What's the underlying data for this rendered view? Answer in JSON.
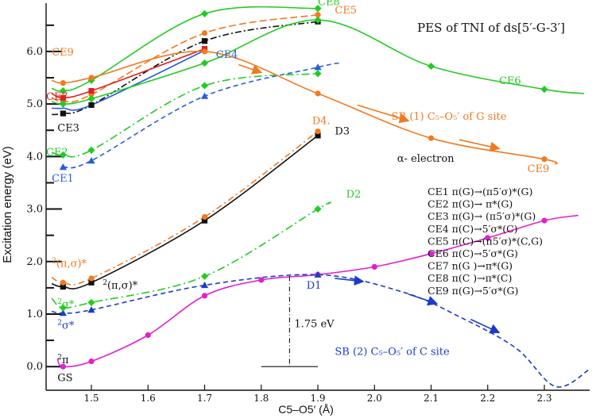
{
  "chart_data": {
    "type": "line",
    "title": "PES of TNI of ds[5′-G-3′]",
    "xlabel": "C5–O5′ (Å)",
    "ylabel": "Excitation energy (eV)",
    "xlim": [
      1.42,
      2.38
    ],
    "ylim": [
      -0.45,
      6.92
    ],
    "xticks": [
      1.5,
      1.6,
      1.7,
      1.8,
      1.9,
      2.0,
      2.1,
      2.2,
      2.3
    ],
    "yticks": [
      0.0,
      1.0,
      2.0,
      3.0,
      4.0,
      5.0,
      6.0
    ],
    "tick_labels_x": [
      "1.5",
      "1.6",
      "1.7",
      "1.8",
      "1.9",
      "2.0",
      "2.1",
      "2.2",
      "2.3"
    ],
    "tick_labels_y": [
      "0.0",
      "1.0",
      "2.0",
      "3.0",
      "4.0",
      "5.0",
      "6.0"
    ],
    "series": [
      {
        "name": "GS",
        "color": "#e020d0",
        "dash": "solid",
        "marker": "circle",
        "x": [
          1.45,
          1.5,
          1.6,
          1.7,
          1.8,
          1.9,
          2.0,
          2.1,
          2.2,
          2.3
        ],
        "y": [
          0.0,
          0.1,
          0.6,
          1.35,
          1.65,
          1.75,
          1.9,
          2.15,
          2.45,
          2.78
        ],
        "smooth_start": [
          1.44,
          0.15
        ],
        "smooth_end": [
          2.36,
          2.88
        ]
      },
      {
        "name": "D1 (σ*)",
        "color": "#1c3cc8",
        "dash": "6,4",
        "marker": "triangle",
        "x": [
          1.45,
          1.5,
          1.7,
          1.9,
          2.05,
          2.15,
          2.25,
          2.32
        ],
        "y": [
          1.02,
          1.08,
          1.55,
          1.75,
          1.42,
          0.95,
          0.35,
          -0.38
        ],
        "markers_at": 4,
        "smooth_start": [
          1.43,
          1.05
        ],
        "smooth_end": [
          2.38,
          -0.05
        ]
      },
      {
        "name": "D2 (σ*)",
        "color": "#22cc22",
        "dash": "10,4,2,4",
        "marker": "diamond",
        "x": [
          1.45,
          1.5,
          1.7,
          1.9,
          1.92
        ],
        "y": [
          1.12,
          1.22,
          1.72,
          3.0,
          3.1
        ],
        "markers_at": 4,
        "smooth_start": [
          1.43,
          1.3
        ]
      },
      {
        "name": "(π,σ)* black",
        "color": "#111111",
        "dash": "solid",
        "marker": "square",
        "x": [
          1.45,
          1.5,
          1.7,
          1.9
        ],
        "y": [
          1.52,
          1.6,
          2.78,
          4.4
        ],
        "smooth_start": [
          1.43,
          1.58
        ]
      },
      {
        "name": "(π,σ)* orange",
        "color": "#f07a20",
        "dash": "8,4,2,4",
        "marker": "circle",
        "x": [
          1.45,
          1.5,
          1.7,
          1.9
        ],
        "y": [
          1.6,
          1.68,
          2.85,
          4.48
        ],
        "smooth_start": [
          1.43,
          1.7
        ]
      },
      {
        "name": "CE1",
        "color": "#2a5ed8",
        "dash": "6,4",
        "marker": "triangle",
        "x": [
          1.45,
          1.5,
          1.7,
          1.9,
          1.94
        ],
        "y": [
          3.8,
          3.92,
          5.15,
          5.7,
          5.78
        ],
        "markers_at": 4
      },
      {
        "name": "CE2",
        "color": "#22cc22",
        "dash": "10,4,2,4",
        "marker": "diamond",
        "x": [
          1.45,
          1.5,
          1.7,
          1.9
        ],
        "y": [
          4.03,
          4.12,
          5.35,
          5.58
        ],
        "smooth_start": [
          1.43,
          4.08
        ]
      },
      {
        "name": "CE3",
        "color": "#111111",
        "dash": "8,3,2,3",
        "marker": "square",
        "x": [
          1.45,
          1.5,
          1.7,
          1.9
        ],
        "y": [
          4.82,
          4.98,
          6.2,
          6.57
        ],
        "smooth_start": [
          1.43,
          4.8
        ]
      },
      {
        "name": "CE4",
        "color": "#2a5ed8",
        "dash": "solid",
        "marker": "none",
        "x": [
          1.45,
          1.5,
          1.7
        ],
        "y": [
          4.92,
          4.98,
          6.02
        ],
        "smooth_start": [
          1.43,
          4.92
        ]
      },
      {
        "name": "CE5",
        "color": "#f07a20",
        "dash": "9,4",
        "marker": "circle",
        "x": [
          1.45,
          1.5,
          1.7,
          1.9
        ],
        "y": [
          5.05,
          5.18,
          6.35,
          6.7
        ],
        "smooth_start": [
          1.43,
          5.12
        ]
      },
      {
        "name": "CE6",
        "color": "#22cc22",
        "dash": "solid",
        "marker": "diamond",
        "x": [
          1.45,
          1.5,
          1.7,
          1.9,
          2.1,
          2.3
        ],
        "y": [
          5.0,
          5.1,
          5.78,
          6.6,
          5.72,
          5.28
        ],
        "smooth_start": [
          1.43,
          5.05
        ],
        "smooth_end": [
          2.37,
          5.2
        ]
      },
      {
        "name": "CE7",
        "color": "#e02020",
        "dash": "solid",
        "marker": "square",
        "x": [
          1.45,
          1.5,
          1.7
        ],
        "y": [
          5.12,
          5.25,
          6.05
        ],
        "smooth_start": [
          1.43,
          5.2
        ]
      },
      {
        "name": "CE8",
        "color": "#22cc22",
        "dash": "solid",
        "marker": "diamond",
        "x": [
          1.45,
          1.5,
          1.7,
          1.9
        ],
        "y": [
          5.25,
          5.45,
          6.72,
          6.82
        ],
        "smooth_start": [
          1.43,
          5.3
        ]
      },
      {
        "name": "CE9",
        "color": "#f07a20",
        "dash": "solid",
        "marker": "circle",
        "x": [
          1.45,
          1.5,
          1.7,
          1.9,
          2.1,
          2.3
        ],
        "y": [
          5.4,
          5.5,
          6.0,
          5.2,
          4.35,
          3.95
        ],
        "smooth_start": [
          1.43,
          5.45
        ],
        "smooth_end": [
          2.32,
          3.85
        ]
      }
    ],
    "arrows": [
      {
        "color": "#f07a20",
        "along": "CE9",
        "points": [
          [
            1.76,
            5.75
          ],
          [
            1.8,
            5.6
          ],
          [
            1.97,
            4.98
          ],
          [
            2.06,
            4.68
          ],
          [
            2.15,
            4.32
          ],
          [
            2.22,
            4.15
          ]
        ]
      },
      {
        "color": "#1c3cc8",
        "along": "D1",
        "points": [
          [
            1.93,
            1.68
          ],
          [
            1.98,
            1.62
          ],
          [
            2.06,
            1.38
          ],
          [
            2.11,
            1.2
          ],
          [
            2.17,
            0.9
          ],
          [
            2.22,
            0.65
          ]
        ]
      }
    ],
    "barrier": {
      "x": 1.85,
      "y_top": 1.72,
      "y_bottom": 0.0,
      "x_from": 1.8,
      "x_to": 1.9,
      "label": "1.75 eV"
    },
    "annotations": [
      {
        "text": "CE8",
        "color": "#22cc22",
        "x": 1.9,
        "y": 6.88
      },
      {
        "text": "CE5",
        "color": "#f07a20",
        "x": 1.93,
        "y": 6.72
      },
      {
        "text": "CE9",
        "color": "#f07a20",
        "x": 1.43,
        "y": 5.92
      },
      {
        "text": "CE4",
        "color": "#2a5ed8",
        "x": 1.72,
        "y": 5.88
      },
      {
        "text": "CE7",
        "color": "#e02020",
        "x": 1.42,
        "y": 5.08
      },
      {
        "text": "CE3",
        "color": "#111111",
        "x": 1.44,
        "y": 4.48
      },
      {
        "text": "CE2",
        "color": "#22cc22",
        "x": 1.42,
        "y": 4.02
      },
      {
        "text": "CE1",
        "color": "#2a5ed8",
        "x": 1.43,
        "y": 3.52
      },
      {
        "text": "CE6",
        "color": "#22cc22",
        "x": 2.22,
        "y": 5.38
      },
      {
        "text": "CE9",
        "color": "#f07a20",
        "x": 2.27,
        "y": 3.7
      },
      {
        "text": "D4.",
        "color": "#f07a20",
        "x": 1.89,
        "y": 4.62
      },
      {
        "text": "D3",
        "color": "#111111",
        "x": 1.93,
        "y": 4.42
      },
      {
        "text": "D2",
        "color": "#22cc22",
        "x": 1.95,
        "y": 3.22
      },
      {
        "text": "D1",
        "color": "#1c3cc8",
        "x": 1.88,
        "y": 1.48
      },
      {
        "text": "GS",
        "color": "#111111",
        "x": 1.44,
        "y": -0.28
      },
      {
        "text": "α- electron",
        "color": "#111111",
        "x": 2.04,
        "y": 3.9
      },
      {
        "text": "SB (1) C₅–O₅′ of G site",
        "color": "#f07a20",
        "x": 2.03,
        "y": 4.7
      },
      {
        "text": "SB (2) C₅–O₅′ of C site",
        "color": "#1c3cc8",
        "x": 1.93,
        "y": 0.22
      }
    ],
    "state_labels": [
      {
        "sup": "2",
        "base": "(π,σ)*",
        "color": "#f07a20",
        "x": 1.43,
        "y": 1.9
      },
      {
        "sup": "2",
        "base": "(π,σ)*",
        "color": "#111111",
        "x": 1.52,
        "y": 1.48
      },
      {
        "sup": "2",
        "base": "σ*",
        "color": "#22cc22",
        "x": 1.44,
        "y": 1.12
      },
      {
        "sup": "2",
        "base": "σ*",
        "color": "#1c3cc8",
        "x": 1.44,
        "y": 0.72
      },
      {
        "sup": "2",
        "base": "π",
        "color": "#111111",
        "x": 1.44,
        "y": 0.06
      }
    ],
    "legend_lines": [
      "CE1 π(G)→(π5′σ)*(G)",
      "CE2 π(G)→ π*(G)",
      "CE3 π(G)→ (π5′σ)*(G)",
      "CE4 π(C)→5′σ*(C)",
      "CE5 π(C)→(π5′σ)*(C,G)",
      "CE6 π(C)→5′σ*(G)",
      "CE7 n(G )→π*(G)",
      "CE8 π(C )→π*(C)",
      "CE9 π(G)→5′σ*(G)"
    ],
    "legend_position": "right"
  }
}
